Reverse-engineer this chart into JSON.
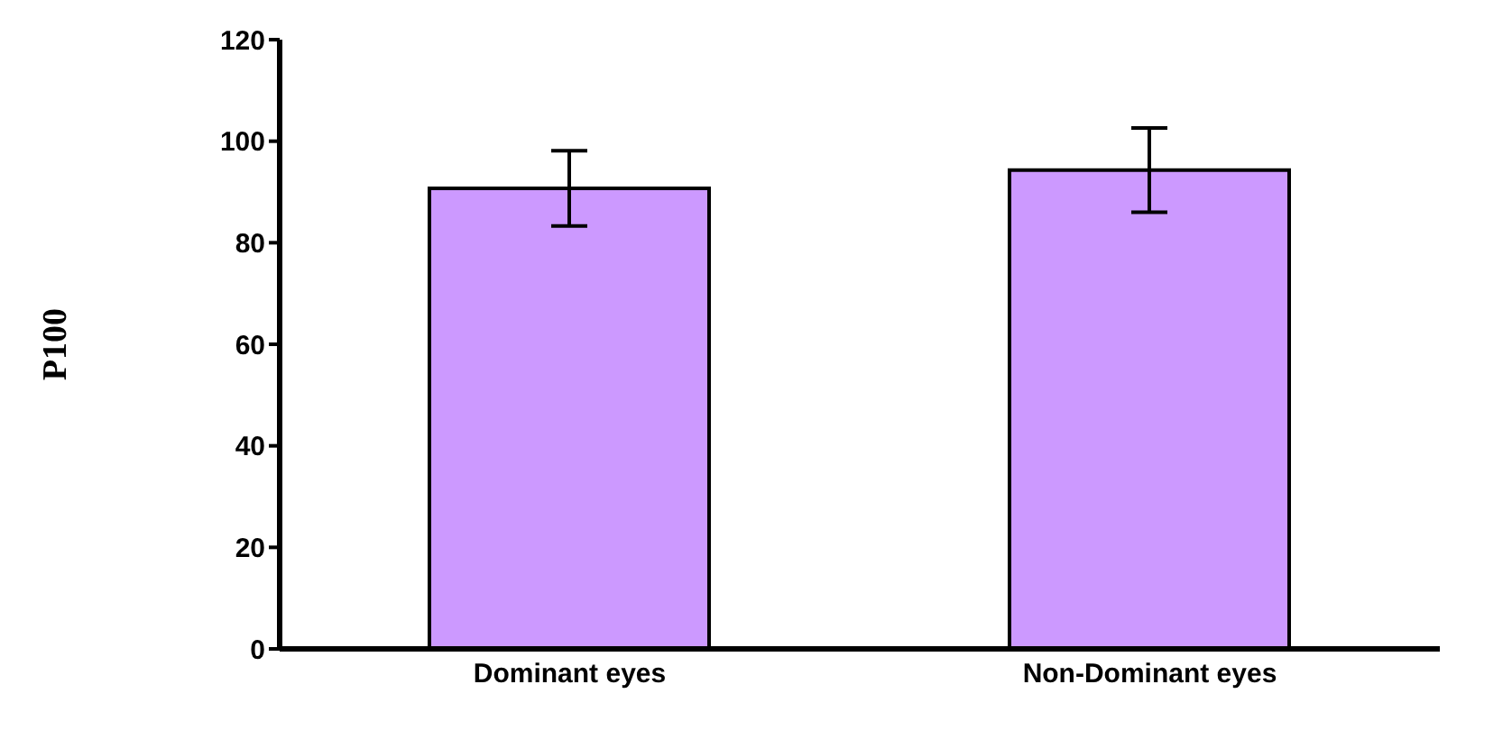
{
  "chart_data": {
    "type": "bar",
    "ylabel": "P100",
    "categories": [
      "Dominant eyes",
      "Non-Dominant eyes"
    ],
    "values": [
      90.7,
      94.3
    ],
    "errors": [
      7.4,
      8.3
    ],
    "color": "#cc99ff",
    "ylim": [
      0,
      120
    ],
    "yticks": [
      0,
      20,
      40,
      60,
      80,
      100,
      120
    ],
    "grid": false,
    "legend": false
  }
}
